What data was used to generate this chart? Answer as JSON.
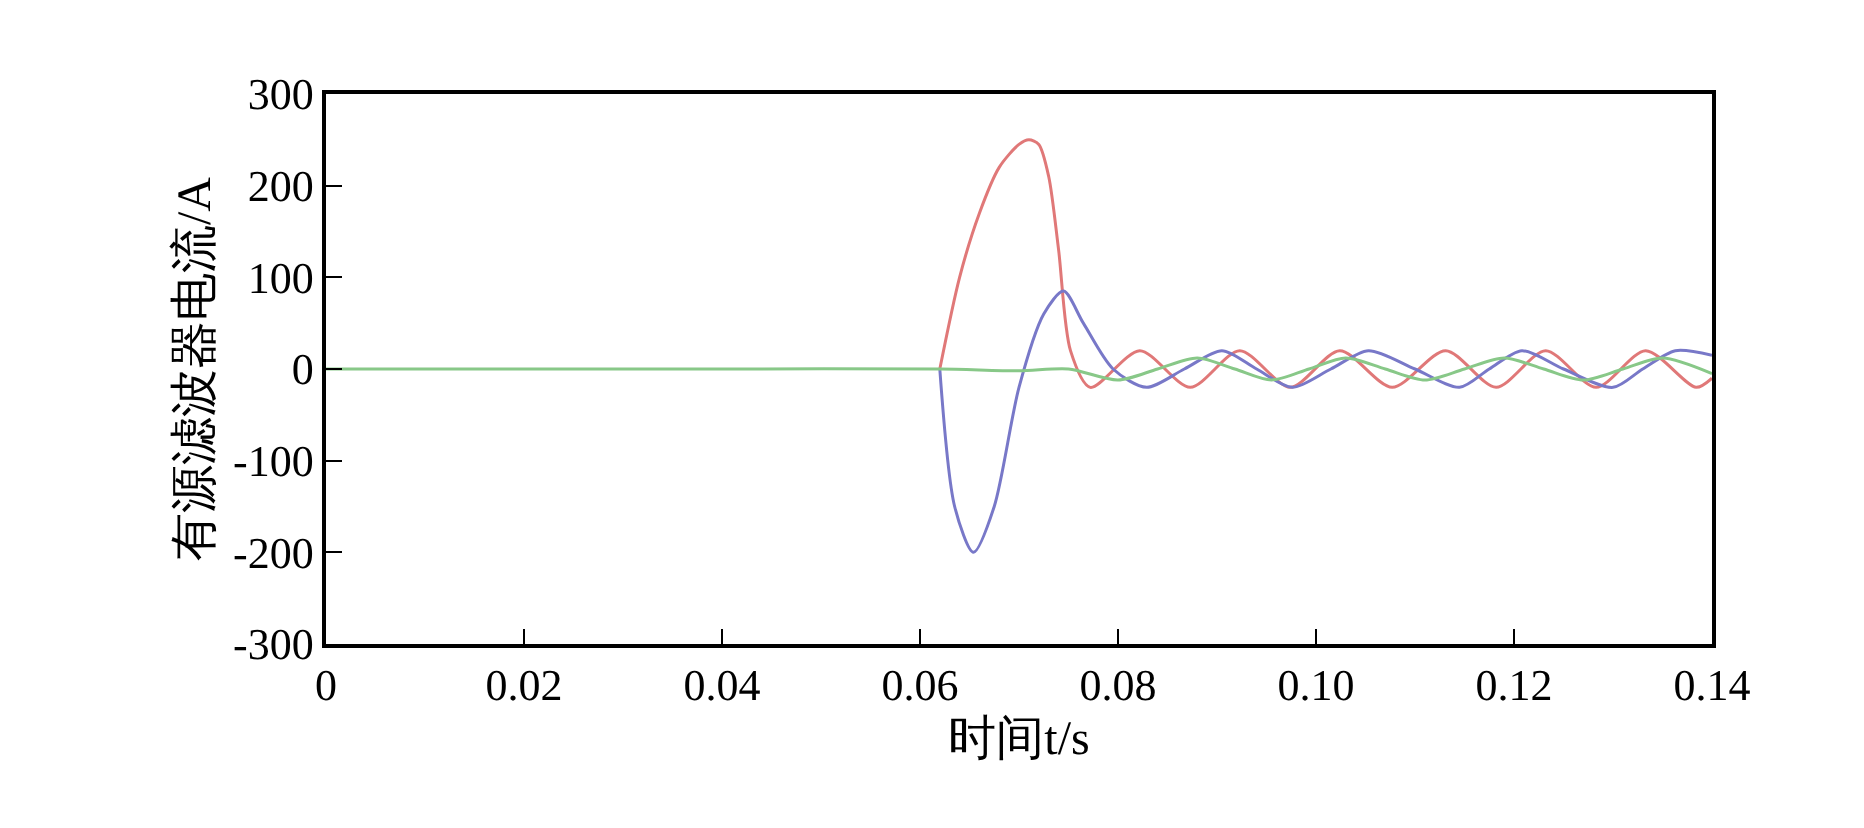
{
  "chart_data": {
    "type": "line",
    "xlabel": "时间t/s",
    "ylabel": "有源滤波器电流/A",
    "xlim": [
      0,
      0.14
    ],
    "ylim": [
      -300,
      300
    ],
    "xticks": [
      0,
      0.02,
      0.04,
      0.06,
      0.08,
      {
        "value": 0.1,
        "label": "0.10"
      },
      {
        "value": 0.12,
        "label": "0.12"
      },
      {
        "value": 0.14,
        "label": "0.14"
      }
    ],
    "yticks": [
      -300,
      -200,
      -100,
      0,
      100,
      200,
      300
    ],
    "marker": "none",
    "line_style": "solid",
    "series": [
      {
        "color": "#e07878",
        "x": [
          0.062,
          0.064,
          0.066,
          0.068,
          0.07,
          0.071,
          0.072,
          0.073,
          0.074,
          0.0752,
          0.0772,
          0.0822,
          0.0873,
          0.0923,
          0.0974,
          0.1024,
          0.1077,
          0.1131,
          0.1182,
          0.1232,
          0.1283,
          0.1333,
          0.1384,
          0.14
        ],
        "values": [
          0,
          100,
          170,
          220,
          245,
          250,
          245,
          210,
          130,
          20,
          -20,
          20,
          -20,
          20,
          -20,
          20,
          -20,
          20,
          -20,
          20,
          -20,
          20,
          -20,
          -10
        ]
      },
      {
        "color": "#7878c8",
        "x": [
          0.062,
          0.0635,
          0.0654,
          0.0675,
          0.07,
          0.0725,
          0.0745,
          0.0765,
          0.0795,
          0.0829,
          0.0867,
          0.0905,
          0.094,
          0.0976,
          0.1015,
          0.1053,
          0.11,
          0.1145,
          0.1175,
          0.1208,
          0.125,
          0.13,
          0.133,
          0.1363,
          0.14
        ],
        "values": [
          0,
          -150,
          -200,
          -150,
          -20,
          60,
          85,
          50,
          0,
          -20,
          0,
          20,
          0,
          -20,
          0,
          20,
          0,
          -20,
          0,
          20,
          0,
          -20,
          0,
          20,
          15
        ]
      },
      {
        "color": "#88c888",
        "x": [
          0,
          0.02,
          0.04,
          0.062,
          0.07,
          0.075,
          0.08,
          0.084,
          0.088,
          0.0918,
          0.0955,
          0.0993,
          0.103,
          0.107,
          0.111,
          0.115,
          0.119,
          0.123,
          0.127,
          0.131,
          0.135,
          0.14
        ],
        "values": [
          0,
          0,
          0,
          0,
          -2,
          0,
          -12,
          0,
          12,
          0,
          -12,
          0,
          12,
          0,
          -12,
          0,
          12,
          0,
          -12,
          0,
          12,
          -5
        ]
      }
    ]
  }
}
